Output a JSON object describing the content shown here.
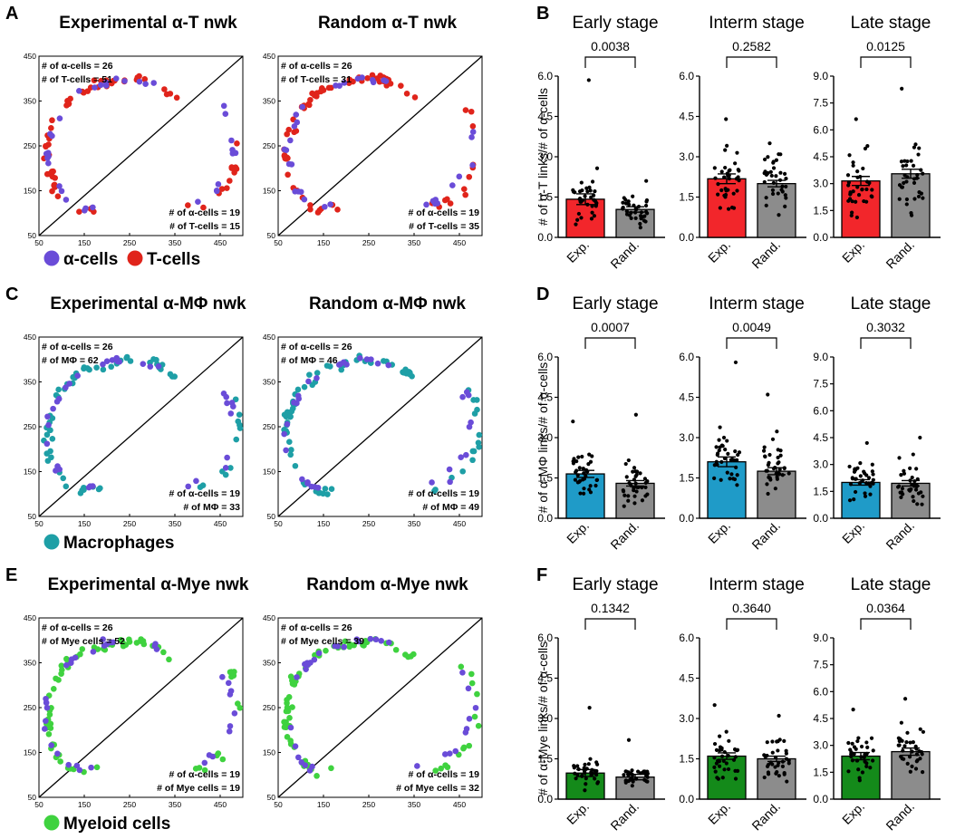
{
  "colors": {
    "alpha": "#6a4cd8",
    "tcell": "#e0241b",
    "mac": "#1e9fa6",
    "mye": "#3fd23f",
    "rand_bar": "#8c8c8c",
    "exp_T": "#f2262b",
    "exp_M": "#1f9bc8",
    "exp_Y": "#148a1a"
  },
  "panels": [
    {
      "key": "T",
      "scatter_letter": "A",
      "bar_letter": "B",
      "exp_title": "Experimental α-T nwk",
      "rand_title": "Random α-T nwk",
      "legend": {
        "alpha_label": "α-cells",
        "other_label": "T-cells"
      },
      "exp_counts": {
        "tl1": "# of α-cells = 26",
        "tl2": "# of T-cells = 51",
        "br1": "# of α-cells = 19",
        "br2": "# of T-cells = 15"
      },
      "rand_counts": {
        "tl1": "# of α-cells = 26",
        "tl2": "# of T-cells = 31",
        "br1": "# of α-cells = 19",
        "br2": "# of T-cells = 35"
      },
      "ylabel": "# of α-T links/# of α-cells"
    },
    {
      "key": "M",
      "scatter_letter": "C",
      "bar_letter": "D",
      "exp_title": "Experimental α-MΦ nwk",
      "rand_title": "Random α-MΦ nwk",
      "legend": {
        "other_label": "Macrophages"
      },
      "exp_counts": {
        "tl1": "# of α-cells = 26",
        "tl2": "# of MΦ = 62",
        "br1": "# of α-cells = 19",
        "br2": "# of MΦ = 33"
      },
      "rand_counts": {
        "tl1": "# of α-cells = 26",
        "tl2": "# of MΦ = 46",
        "br1": "# of α-cells = 19",
        "br2": "# of MΦ = 49"
      },
      "ylabel": "# of α-MΦ links/# of α-cells"
    },
    {
      "key": "Y",
      "scatter_letter": "E",
      "bar_letter": "F",
      "exp_title": "Experimental α-Mye nwk",
      "rand_title": "Random α-Mye nwk",
      "legend": {
        "other_label": "Myeloid cells"
      },
      "exp_counts": {
        "tl1": "# of α-cells = 26",
        "tl2": "# of Mye cells = 52",
        "br1": "# of α-cells = 19",
        "br2": "# of Mye cells = 19"
      },
      "rand_counts": {
        "tl1": "# of α-cells = 26",
        "tl2": "# of Mye cells = 39",
        "br1": "# of α-cells = 19",
        "br2": "# of Mye cells = 32"
      },
      "ylabel": "# of α-Mye links/# of α-cells"
    }
  ],
  "chart_data": [
    {
      "type": "scatter",
      "xlim": [
        50,
        500
      ],
      "ylim": [
        50,
        450
      ],
      "xticks": [
        "50",
        "150",
        "250",
        "350",
        "450"
      ],
      "yticks": [
        "50",
        "150",
        "250",
        "350",
        "450"
      ],
      "diagonal": "y = x",
      "note": "Scatter panels (A, C, E): α-cell and partner-cell positions, experimental vs random networks; two clusters per panel separated by the diagonal"
    },
    {
      "type": "bar",
      "stages": [
        "Early stage",
        "Interm stage",
        "Late stage"
      ],
      "categories": [
        "Exp.",
        "Rand."
      ],
      "series": [
        {
          "name": "α-T",
          "ylabel": "# of α-T links/# of α-cells",
          "ylims": [
            [
              0,
              6
            ],
            [
              0,
              6
            ],
            [
              0,
              9
            ]
          ],
          "yticks": [
            [
              "0.0",
              "1.5",
              "3.0",
              "4.5",
              "6.0"
            ],
            [
              "0.0",
              "1.5",
              "3.0",
              "4.5",
              "6.0"
            ],
            [
              "0.0",
              "1.5",
              "3.0",
              "4.5",
              "6.0",
              "7.5",
              "9.0"
            ]
          ],
          "means": [
            [
              1.42,
              1.04
            ],
            [
              2.18,
              2.0
            ],
            [
              3.15,
              3.55
            ]
          ],
          "sems": [
            [
              0.2,
              0.1
            ],
            [
              0.18,
              0.12
            ],
            [
              0.25,
              0.25
            ]
          ],
          "maxes": [
            [
              5.85,
              2.1
            ],
            [
              4.4,
              3.5
            ],
            [
              6.6,
              8.3
            ]
          ],
          "pvalues": [
            "0.0038",
            "0.2582",
            "0.0125"
          ]
        },
        {
          "name": "α-MΦ",
          "ylabel": "# of α-MΦ links/# of α-cells",
          "ylims": [
            [
              0,
              6
            ],
            [
              0,
              6
            ],
            [
              0,
              9
            ]
          ],
          "yticks": [
            [
              "0.0",
              "1.5",
              "3.0",
              "4.5",
              "6.0"
            ],
            [
              "0.0",
              "1.5",
              "3.0",
              "4.5",
              "6.0"
            ],
            [
              "0.0",
              "1.5",
              "3.0",
              "4.5",
              "6.0",
              "7.5",
              "9.0"
            ]
          ],
          "means": [
            [
              1.65,
              1.3
            ],
            [
              2.1,
              1.75
            ],
            [
              2.0,
              1.95
            ]
          ],
          "sems": [
            [
              0.13,
              0.1
            ],
            [
              0.18,
              0.13
            ],
            [
              0.15,
              0.15
            ]
          ],
          "maxes": [
            [
              3.6,
              3.85
            ],
            [
              5.8,
              4.6
            ],
            [
              4.2,
              4.5
            ]
          ],
          "pvalues": [
            "0.0007",
            "0.0049",
            "0.3032"
          ]
        },
        {
          "name": "α-Mye",
          "ylabel": "# of α-Mye links/# of α-cells",
          "ylims": [
            [
              0,
              6
            ],
            [
              0,
              6
            ],
            [
              0,
              9
            ]
          ],
          "yticks": [
            [
              "0.0",
              "1.5",
              "3.0",
              "4.5",
              "6.0"
            ],
            [
              "0.0",
              "1.5",
              "3.0",
              "4.5",
              "6.0"
            ],
            [
              "0.0",
              "1.5",
              "3.0",
              "4.5",
              "6.0",
              "7.5",
              "9.0"
            ]
          ],
          "means": [
            [
              0.97,
              0.82
            ],
            [
              1.6,
              1.5
            ],
            [
              2.4,
              2.65
            ]
          ],
          "sems": [
            [
              0.13,
              0.1
            ],
            [
              0.12,
              0.1
            ],
            [
              0.2,
              0.2
            ]
          ],
          "maxes": [
            [
              3.4,
              2.2
            ],
            [
              3.5,
              3.1
            ],
            [
              5.0,
              5.6
            ]
          ],
          "pvalues": [
            "0.1342",
            "0.3640",
            "0.0364"
          ]
        }
      ]
    }
  ]
}
